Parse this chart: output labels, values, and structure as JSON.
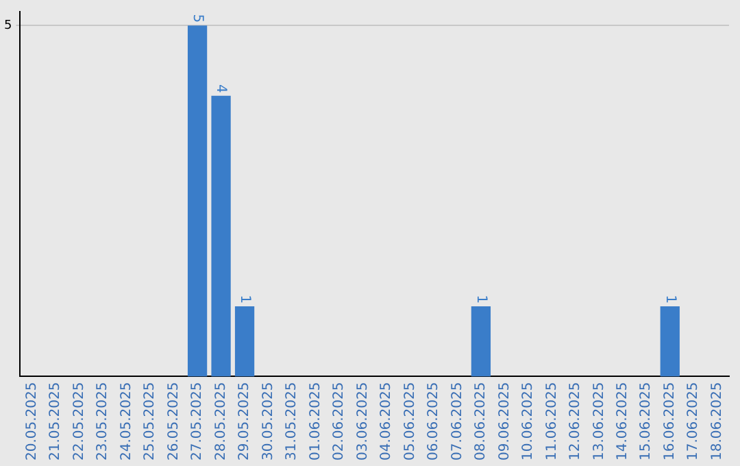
{
  "chart_data": {
    "type": "bar",
    "categories": [
      "20.05.2025",
      "21.05.2025",
      "22.05.2025",
      "23.05.2025",
      "24.05.2025",
      "25.05.2025",
      "26.05.2025",
      "27.05.2025",
      "28.05.2025",
      "29.05.2025",
      "30.05.2025",
      "31.05.2025",
      "01.06.2025",
      "02.06.2025",
      "03.06.2025",
      "04.06.2025",
      "05.06.2025",
      "06.06.2025",
      "07.06.2025",
      "08.06.2025",
      "09.06.2025",
      "10.06.2025",
      "11.06.2025",
      "12.06.2025",
      "13.06.2025",
      "14.06.2025",
      "15.06.2025",
      "16.06.2025",
      "17.06.2025",
      "18.06.2025"
    ],
    "values": [
      0,
      0,
      0,
      0,
      0,
      0,
      0,
      5,
      4,
      1,
      0,
      0,
      0,
      0,
      0,
      0,
      0,
      0,
      0,
      1,
      0,
      0,
      0,
      0,
      0,
      0,
      0,
      1,
      0,
      0
    ],
    "value_labels": [
      null,
      null,
      null,
      null,
      null,
      null,
      null,
      "5",
      "4",
      "1",
      null,
      null,
      null,
      null,
      null,
      null,
      null,
      null,
      null,
      "1",
      null,
      null,
      null,
      null,
      null,
      null,
      null,
      "1",
      null,
      null
    ],
    "color": "#3a7dc9",
    "ylim": [
      0,
      5.2
    ],
    "yticks": [
      5
    ],
    "grid": "y",
    "legend": false
  }
}
